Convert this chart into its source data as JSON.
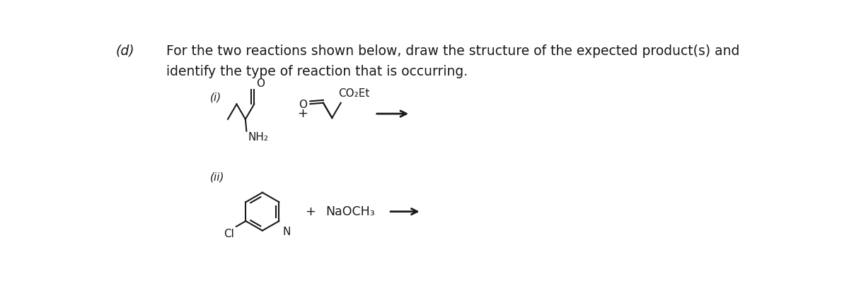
{
  "bg_color": "#ffffff",
  "text_color": "#1a1a1a",
  "label_d": "(d)",
  "line1": "For the two reactions shown below, draw the structure of the expected product(s) and",
  "line2": "identify the type of reaction that is occurring.",
  "label_i": "(i)",
  "label_ii": "(ii)",
  "plus_i": "+",
  "plus_ii": "+",
  "naoch3": "NaOCH₃",
  "co2et": "CO₂Et",
  "nh2": "NH₂",
  "o_label": "O",
  "o_label2": "O",
  "cl_label": "Cl",
  "n_label": "N",
  "font_size_main": 13.5,
  "font_size_label": 11.5,
  "font_size_chem": 11
}
